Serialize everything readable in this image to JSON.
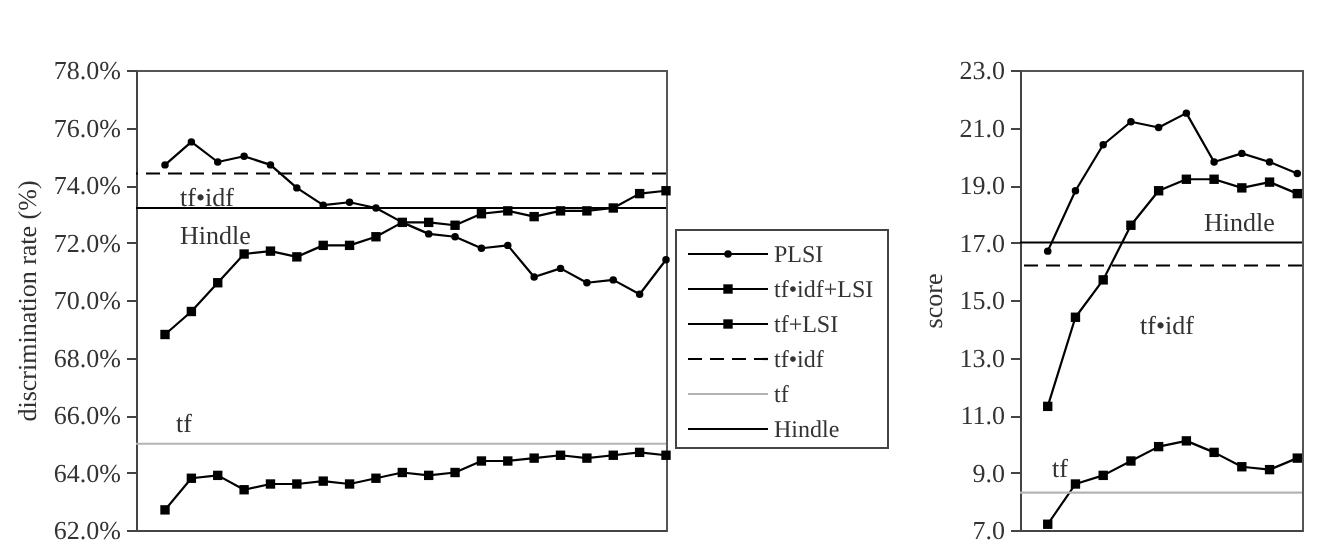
{
  "chart_data": [
    {
      "type": "line",
      "ylabel": "discrimination rate (%)",
      "categories": [
        null,
        null,
        null,
        null,
        null,
        null,
        null,
        null,
        null,
        null,
        null,
        null,
        null,
        null,
        null,
        null,
        null,
        null,
        null,
        null
      ],
      "series": [
        {
          "name": "PLSI",
          "color": "#000000",
          "marker": "circle",
          "values": [
            74.7,
            75.5,
            74.8,
            75.0,
            74.7,
            73.9,
            73.3,
            73.4,
            73.2,
            72.7,
            72.3,
            72.2,
            71.8,
            71.9,
            70.8,
            71.1,
            70.6,
            70.7,
            70.2,
            71.4
          ]
        },
        {
          "name": "tf•idf+LSI",
          "color": "#000000",
          "marker": "square",
          "values": [
            68.8,
            69.6,
            70.6,
            71.6,
            71.7,
            71.5,
            71.9,
            71.9,
            72.2,
            72.7,
            72.7,
            72.6,
            73.0,
            73.1,
            72.9,
            73.1,
            73.1,
            73.2,
            73.7,
            73.8
          ]
        },
        {
          "name": "tf+LSI",
          "color": "#000000",
          "marker": "square",
          "values": [
            62.7,
            63.8,
            63.9,
            63.4,
            63.6,
            63.6,
            63.7,
            63.6,
            63.8,
            64.0,
            63.9,
            64.0,
            64.4,
            64.4,
            64.5,
            64.6,
            64.5,
            64.6,
            64.7,
            64.6
          ]
        }
      ],
      "ref_lines": [
        {
          "axis": "y",
          "value": 74.4,
          "label": "tf•idf",
          "color": "#000000",
          "line_style": "dashed"
        },
        {
          "axis": "y",
          "value": 65.0,
          "label": "tf",
          "color": "#b4b4b4",
          "line_style": "solid"
        },
        {
          "axis": "y",
          "value": 73.2,
          "label": "Hindle",
          "color": "#000000",
          "line_style": "solid"
        }
      ],
      "ylim": [
        62,
        78
      ],
      "yticks": [
        {
          "value": 62,
          "label": "62.0%"
        },
        {
          "value": 64,
          "label": "64.0%"
        },
        {
          "value": 66,
          "label": "66.0%"
        },
        {
          "value": 68,
          "label": "68.0%"
        },
        {
          "value": 70,
          "label": "70.0%"
        },
        {
          "value": 72,
          "label": "72.0%"
        },
        {
          "value": 74,
          "label": "74.0%"
        },
        {
          "value": 76,
          "label": "76.0%"
        },
        {
          "value": 78,
          "label": "78.0%"
        }
      ],
      "tick_labels": "y",
      "legend": "right"
    },
    {
      "type": "line",
      "ylabel": "score",
      "categories": [
        null,
        null,
        null,
        null,
        null,
        null,
        null,
        null,
        null,
        null
      ],
      "series": [
        {
          "color": "#000000",
          "marker": "circle",
          "values": [
            16.7,
            18.8,
            20.4,
            21.2,
            21.0,
            21.5,
            19.8,
            20.1,
            19.8,
            19.4
          ]
        },
        {
          "color": "#000000",
          "marker": "square",
          "values": [
            11.3,
            14.4,
            15.7,
            17.6,
            18.8,
            19.2,
            19.2,
            18.9,
            19.1,
            18.7
          ]
        },
        {
          "color": "#000000",
          "marker": "square",
          "values": [
            7.2,
            8.6,
            8.9,
            9.4,
            9.9,
            10.1,
            9.7,
            9.2,
            9.1,
            9.5
          ]
        }
      ],
      "ref_lines": [
        {
          "axis": "y",
          "value": 16.2,
          "label": "tf•idf",
          "color": "#000000",
          "line_style": "dashed"
        },
        {
          "axis": "y",
          "value": 8.3,
          "label": "tf",
          "color": "#b4b4b4",
          "line_style": "solid"
        },
        {
          "axis": "y",
          "value": 17.0,
          "label": "Hindle",
          "color": "#000000",
          "line_style": "solid"
        }
      ],
      "ylim": [
        7,
        23
      ],
      "yticks": [
        {
          "value": 7,
          "label": "7.0"
        },
        {
          "value": 9,
          "label": "9.0"
        },
        {
          "value": 11,
          "label": "11.0"
        },
        {
          "value": 13,
          "label": "13.0"
        },
        {
          "value": 15,
          "label": "15.0"
        },
        {
          "value": 17,
          "label": "17.0"
        },
        {
          "value": 19,
          "label": "19.0"
        },
        {
          "value": 21,
          "label": "21.0"
        },
        {
          "value": 23,
          "label": "23.0"
        }
      ],
      "tick_labels": "y"
    }
  ]
}
